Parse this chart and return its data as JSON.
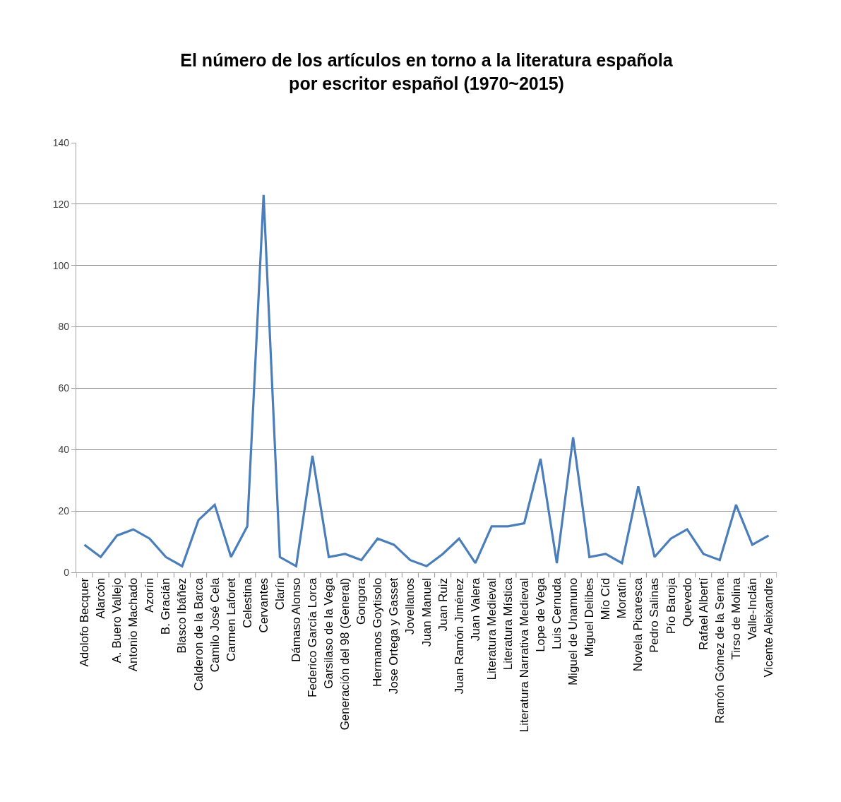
{
  "chart_data": {
    "type": "line",
    "title": "El número de los artículos en torno a la literatura española\npor escritor español (1970~2015)",
    "categories": [
      "Adolofo Becquer",
      "Alarcón",
      "A. Buero Vallejo",
      "Antonio Machado",
      "Azorín",
      "B. Gracián",
      "Blasco Ibáñez",
      "Calderon de la Barca",
      "Camilo José Cela",
      "Carmen Laforet",
      "Celestina",
      "Cervantes",
      "Clarín",
      "Dámaso Alonso",
      "Federico García Lorca",
      "Garsilaso de la Vega",
      "Generación del 98 (General)",
      "Gongora",
      "Hermanos Goytisolo",
      "Jose Ortega y Gasset",
      "Jovellanos",
      "Juan Manuel",
      "Juan Ruiz",
      "Juan Ramón Jiménez",
      "Juan Valera",
      "Literatura Medieval",
      "Literatura Mística",
      "Literatura Narrativa Medieval",
      "Lope de Vega",
      "Luis Cernuda",
      "Miguel de Unamuno",
      "Miguel Delibes",
      "Mío Cíd",
      "Moratín",
      "Novela Picaresca",
      "Pedro Salinas",
      "Pío Baroja",
      "Quevedo",
      "Rafael Albertí",
      "Ramón Gómez de la Serna",
      "Tirso de Molina",
      "Valle-Inclán",
      "Vicente Aleixandre"
    ],
    "series": [
      {
        "color": "#4a7ebb",
        "values": [
          9,
          5,
          12,
          14,
          11,
          5,
          2,
          17,
          22,
          5,
          15,
          123,
          5,
          2,
          38,
          5,
          6,
          4,
          11,
          9,
          4,
          2,
          6,
          11,
          3,
          15,
          15,
          16,
          37,
          3,
          44,
          5,
          6,
          3,
          28,
          5,
          11,
          14,
          6,
          4,
          22,
          9,
          12
        ]
      }
    ],
    "ylim": [
      0,
      140
    ],
    "yticks": [
      0,
      20,
      40,
      60,
      80,
      100,
      120,
      140
    ],
    "grid": "y",
    "marker": "none",
    "line_style": "solid"
  }
}
